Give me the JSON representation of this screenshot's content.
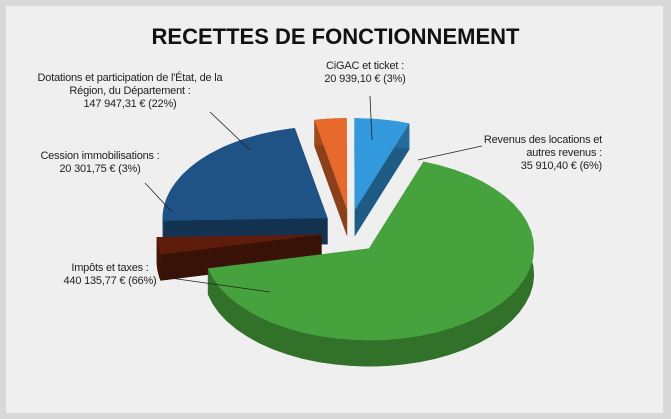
{
  "chart_data": {
    "type": "pie",
    "title": "RECETTES DE FONCTIONNEMENT",
    "categories": [
      "CiGAC et ticket :",
      "Revenus des locations et autres revenus :",
      "Impôts et taxes :",
      "Cession immobilisations :",
      "Dotations et participation de l'État, de la Région, du Département :"
    ],
    "values": [
      20939.1,
      35910.4,
      440135.77,
      20301.75,
      147947.31
    ],
    "value_labels": [
      "20 939,10 € (3%)",
      "35 910,40 € (6%)",
      "440 135,77 € (66%)",
      "20 301,75 € (3%)",
      "147 947,31 € (22%)"
    ],
    "colors": [
      "#e8692c",
      "#3399dd",
      "#46a23c",
      "#5e1c0c",
      "#1f5385"
    ],
    "three_d": true,
    "exploded": true
  }
}
